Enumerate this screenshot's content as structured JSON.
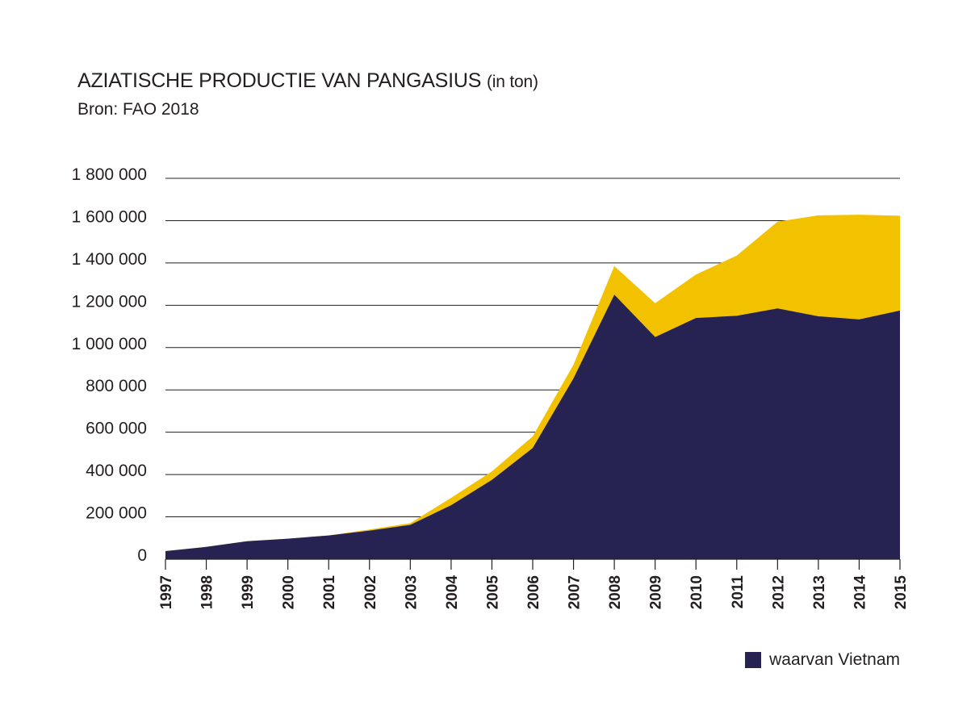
{
  "chart_data": {
    "type": "area",
    "title": "AZIATISCHE PRODUCTIE VAN PANGASIUS",
    "title_unit": "(in ton)",
    "subtitle": "Bron: FAO 2018",
    "xlabel": "",
    "ylabel": "",
    "x": [
      "1997",
      "1998",
      "1999",
      "2000",
      "2001",
      "2002",
      "2003",
      "2004",
      "2005",
      "2006",
      "2007",
      "2008",
      "2009",
      "2010",
      "2011",
      "2012",
      "2013",
      "2014",
      "2015"
    ],
    "ylim": [
      0,
      1800000
    ],
    "yticks": [
      0,
      200000,
      400000,
      600000,
      800000,
      1000000,
      1200000,
      1400000,
      1600000,
      1800000
    ],
    "ytick_labels": [
      "0",
      "200 000",
      "400 000",
      "600 000",
      "800 000",
      "1 000 000",
      "1 200 000",
      "1 400 000",
      "1 600 000",
      "1 800 000"
    ],
    "grid": true,
    "legend_position": "bottom-right",
    "series": [
      {
        "color": "#f2c200",
        "values": [
          38000,
          58000,
          85000,
          97000,
          112000,
          140000,
          170000,
          290000,
          415000,
          580000,
          920000,
          1385000,
          1210000,
          1345000,
          1435000,
          1595000,
          1625000,
          1628000,
          1623000
        ]
      },
      {
        "name": "waarvan Vietnam",
        "color": "#262353",
        "values": [
          38000,
          58000,
          85000,
          97000,
          112000,
          135000,
          162000,
          255000,
          375000,
          525000,
          855000,
          1250000,
          1050000,
          1140000,
          1150000,
          1185000,
          1148000,
          1133000,
          1175000
        ]
      }
    ]
  }
}
